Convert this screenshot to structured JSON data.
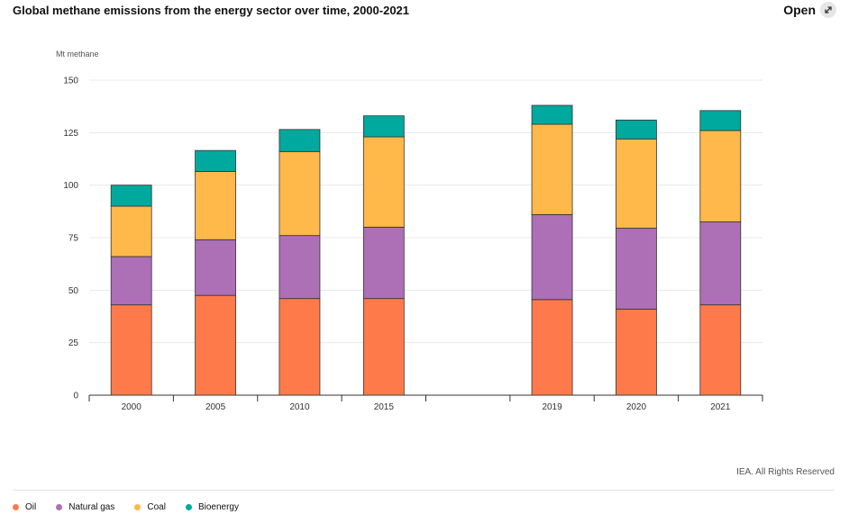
{
  "header": {
    "title": "Global methane emissions from the energy sector over time, 2000-2021",
    "open_label": "Open",
    "open_icon": "expand-arrow-icon"
  },
  "footer": {
    "credit": "IEA. All Rights Reserved"
  },
  "colors": {
    "Oil": "#ff7a4a",
    "Natural gas": "#ad6fb5",
    "Coal": "#ffb84a",
    "Bioenergy": "#00a99d"
  },
  "chart_data": {
    "type": "bar",
    "stacked": true,
    "title": "Global methane emissions from the energy sector over time, 2000-2021",
    "ylabel": "Mt methane",
    "xlabel": "",
    "ylim": [
      0,
      150
    ],
    "yticks": [
      0,
      25,
      50,
      75,
      100,
      125,
      150
    ],
    "grid": true,
    "legend_position": "bottom-left",
    "categories": [
      "2000",
      "2005",
      "2010",
      "2015",
      "",
      "2019",
      "2020",
      "2021"
    ],
    "series": [
      {
        "name": "Oil",
        "values": [
          43,
          47.5,
          46,
          46,
          null,
          45.5,
          41,
          43
        ]
      },
      {
        "name": "Natural gas",
        "values": [
          23,
          26.5,
          30,
          34,
          null,
          40.5,
          38.5,
          39.5
        ]
      },
      {
        "name": "Coal",
        "values": [
          24,
          32.5,
          40,
          43,
          null,
          43,
          42.5,
          43.5
        ]
      },
      {
        "name": "Bioenergy",
        "values": [
          10,
          10,
          10.5,
          10,
          null,
          9,
          9,
          9.5
        ]
      }
    ]
  }
}
